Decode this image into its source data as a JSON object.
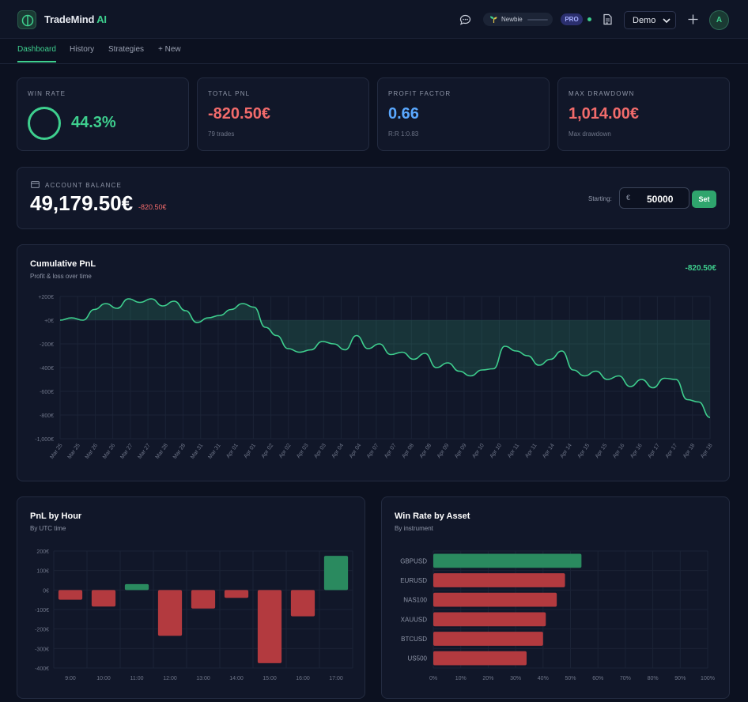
{
  "header": {
    "brand": "TradeMind",
    "brand_accent": "AI",
    "level_badge": "Newbie",
    "pro_badge": "PRO",
    "account_select": "Demo",
    "avatar_initial": "A"
  },
  "nav": {
    "tabs": [
      "Dashboard",
      "History",
      "Strategies",
      "+ New"
    ],
    "active": "Dashboard"
  },
  "stats": {
    "win_rate": {
      "label": "WIN RATE",
      "value": "44.3%"
    },
    "total_pnl": {
      "label": "TOTAL PNL",
      "value": "-820.50€",
      "sub": "79 trades"
    },
    "profit_factor": {
      "label": "PROFIT FACTOR",
      "value": "0.66",
      "sub": "R:R 1:0.83"
    },
    "max_drawdown": {
      "label": "MAX DRAWDOWN",
      "value": "1,014.00€",
      "sub": "Max drawdown"
    }
  },
  "balance": {
    "label": "ACCOUNT BALANCE",
    "value": "49,179.50€",
    "change": "-820.50€",
    "starting_label": "Starting:",
    "currency": "€",
    "starting_value": "50000",
    "set_label": "Set"
  },
  "colors": {
    "accent": "#3ecf8e",
    "negative": "#f26b6b",
    "bar_negative": "#b33a3f",
    "bar_positive": "#2a8a5f",
    "background": "#0c1120",
    "card": "#111729"
  },
  "chart_data": [
    {
      "type": "area",
      "title": "Cumulative PnL",
      "subtitle": "Profit & loss over time",
      "total": "-820.50€",
      "y_ticks": [
        "+200€",
        "+0€",
        "-200€",
        "-400€",
        "-600€",
        "-800€",
        "-1,000€"
      ],
      "y_tick_values": [
        200,
        0,
        -200,
        -400,
        -600,
        -800,
        -1000
      ],
      "ylim": [
        -1000,
        200
      ],
      "x_labels": [
        "Mar 25",
        "Mar 25",
        "Mar 26",
        "Mar 26",
        "Mar 27",
        "Mar 27",
        "Mar 28",
        "Mar 28",
        "Mar 31",
        "Mar 31",
        "Apr 01",
        "Apr 01",
        "Apr 02",
        "Apr 02",
        "Apr 03",
        "Apr 03",
        "Apr 04",
        "Apr 04",
        "Apr 07",
        "Apr 07",
        "Apr 08",
        "Apr 08",
        "Apr 09",
        "Apr 09",
        "Apr 10",
        "Apr 10",
        "Apr 11",
        "Apr 11",
        "Apr 14",
        "Apr 14",
        "Apr 15",
        "Apr 15",
        "Apr 16",
        "Apr 16",
        "Apr 17",
        "Apr 17",
        "Apr 18",
        "Apr 18"
      ],
      "values": [
        0,
        20,
        0,
        90,
        140,
        100,
        180,
        150,
        180,
        120,
        160,
        80,
        -20,
        20,
        40,
        90,
        140,
        110,
        -60,
        -130,
        -240,
        -270,
        -250,
        -180,
        -200,
        -250,
        -130,
        -240,
        -200,
        -290,
        -270,
        -330,
        -280,
        -400,
        -360,
        -430,
        -470,
        -420,
        -410,
        -220,
        -260,
        -300,
        -380,
        -330,
        -260,
        -420,
        -470,
        -430,
        -500,
        -470,
        -560,
        -500,
        -570,
        -490,
        -500,
        -670,
        -690,
        -820.5
      ],
      "grid": true
    },
    {
      "type": "bar",
      "title": "PnL by Hour",
      "subtitle": "By UTC time",
      "categories": [
        "9:00",
        "10:00",
        "11:00",
        "12:00",
        "13:00",
        "14:00",
        "15:00",
        "16:00",
        "17:00"
      ],
      "values": [
        -50,
        -85,
        30,
        -235,
        -95,
        -40,
        -375,
        -135,
        175
      ],
      "y_ticks": [
        "200€",
        "100€",
        "0€",
        "-100€",
        "-200€",
        "-300€",
        "-400€"
      ],
      "ylim": [
        -400,
        200
      ],
      "grid": true
    },
    {
      "type": "bar",
      "orientation": "horizontal",
      "title": "Win Rate by Asset",
      "subtitle": "By instrument",
      "categories": [
        "GBPUSD",
        "EURUSD",
        "NAS100",
        "XAUUSD",
        "BTCUSD",
        "US500"
      ],
      "values": [
        54,
        48,
        45,
        41,
        40,
        34
      ],
      "x_ticks": [
        "0%",
        "10%",
        "20%",
        "30%",
        "40%",
        "50%",
        "60%",
        "70%",
        "80%",
        "90%",
        "100%"
      ],
      "xlim": [
        0,
        100
      ],
      "grid": true
    }
  ]
}
